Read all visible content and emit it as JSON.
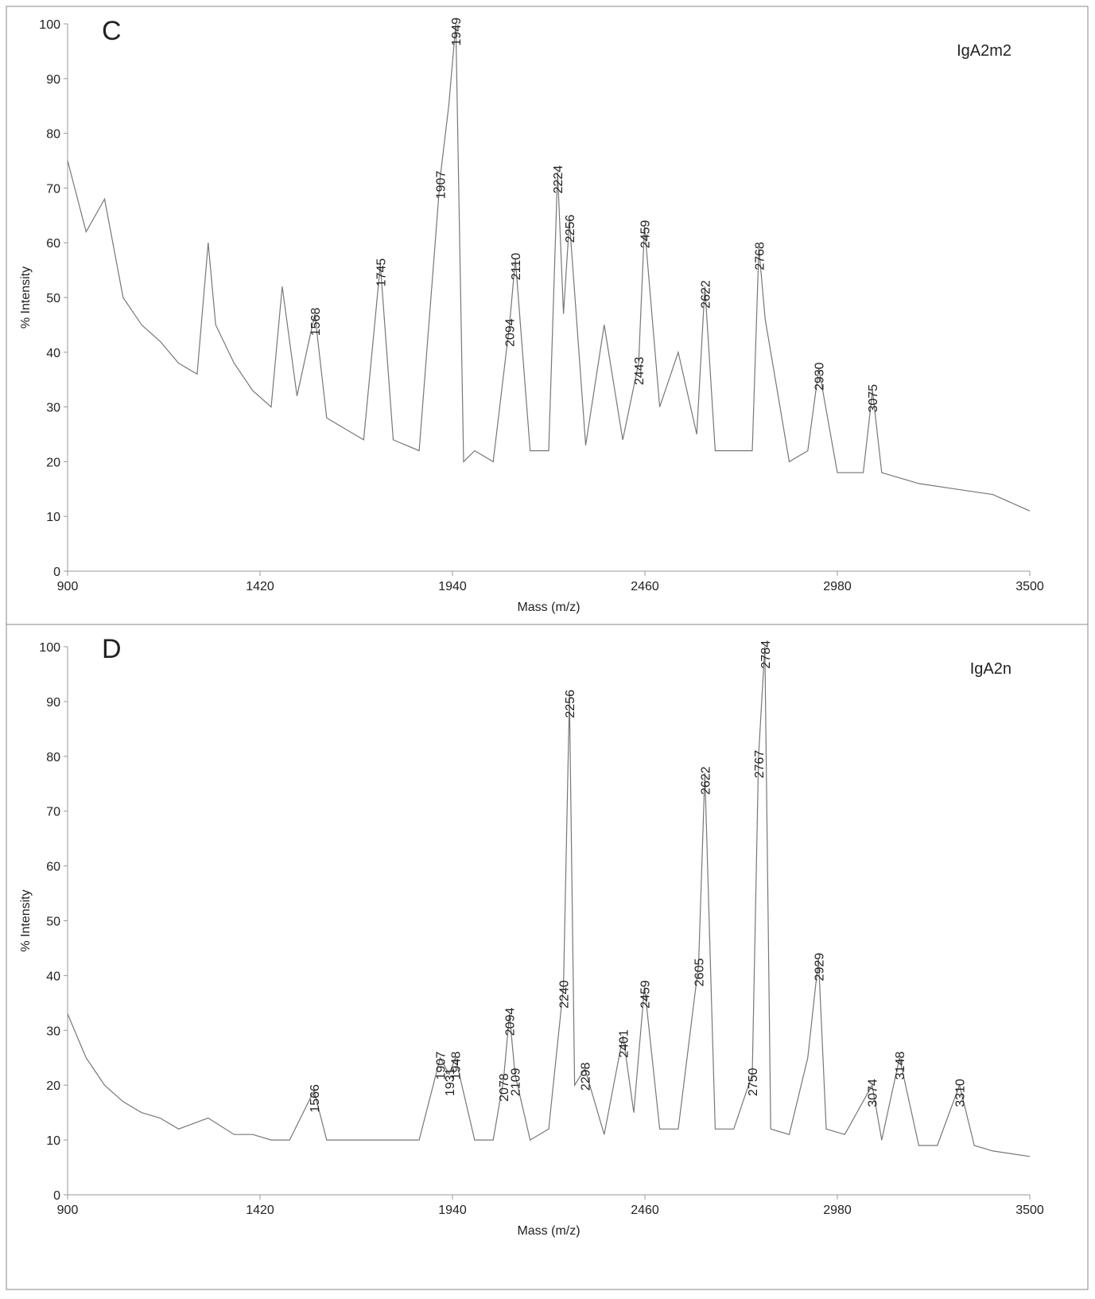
{
  "chart_data": [
    {
      "type": "line",
      "title": "C",
      "annotation": "IgA2m2",
      "xlabel": "Mass (m/z)",
      "ylabel": "% Intensity",
      "color": "#777777",
      "xlim": [
        900,
        3500
      ],
      "xticks": [
        900,
        1420,
        1940,
        2460,
        2980,
        3500
      ],
      "ylim": [
        0,
        100
      ],
      "yticks": [
        0,
        10,
        20,
        30,
        40,
        50,
        60,
        70,
        80,
        90,
        100
      ],
      "x": [
        900,
        950,
        1000,
        1050,
        1100,
        1150,
        1200,
        1250,
        1280,
        1300,
        1350,
        1400,
        1450,
        1480,
        1520,
        1568,
        1600,
        1650,
        1700,
        1745,
        1780,
        1850,
        1907,
        1930,
        1949,
        1970,
        2000,
        2050,
        2094,
        2110,
        2150,
        2200,
        2224,
        2240,
        2256,
        2300,
        2350,
        2400,
        2443,
        2459,
        2500,
        2550,
        2600,
        2622,
        2650,
        2700,
        2750,
        2768,
        2785,
        2850,
        2900,
        2930,
        2980,
        3050,
        3075,
        3100,
        3200,
        3300,
        3400,
        3500
      ],
      "values": [
        75,
        62,
        68,
        50,
        45,
        42,
        38,
        36,
        60,
        45,
        38,
        33,
        30,
        52,
        32,
        47,
        28,
        26,
        24,
        56,
        24,
        22,
        72,
        85,
        100,
        20,
        22,
        20,
        45,
        57,
        22,
        22,
        73,
        47,
        64,
        23,
        45,
        24,
        38,
        63,
        30,
        40,
        25,
        52,
        22,
        22,
        22,
        59,
        46,
        20,
        22,
        37,
        18,
        18,
        33,
        18,
        16,
        15,
        14,
        11
      ],
      "peak_labels": [
        1568,
        1745,
        1907,
        1949,
        2094,
        2110,
        2224,
        2256,
        2443,
        2459,
        2622,
        2768,
        2930,
        3075
      ]
    },
    {
      "type": "line",
      "title": "D",
      "annotation": "IgA2n",
      "xlabel": "Mass (m/z)",
      "ylabel": "% Intensity",
      "color": "#777777",
      "xlim": [
        900,
        3500
      ],
      "xticks": [
        900,
        1420,
        1940,
        2460,
        2980,
        3500
      ],
      "ylim": [
        0,
        100
      ],
      "yticks": [
        0,
        10,
        20,
        30,
        40,
        50,
        60,
        70,
        80,
        90,
        100
      ],
      "x": [
        900,
        950,
        1000,
        1050,
        1100,
        1150,
        1200,
        1280,
        1350,
        1400,
        1450,
        1500,
        1566,
        1600,
        1700,
        1800,
        1850,
        1907,
        1931,
        1948,
        2000,
        2050,
        2078,
        2094,
        2109,
        2150,
        2200,
        2240,
        2256,
        2270,
        2298,
        2350,
        2401,
        2430,
        2459,
        2500,
        2550,
        2605,
        2622,
        2650,
        2700,
        2750,
        2767,
        2784,
        2800,
        2850,
        2900,
        2929,
        2950,
        3000,
        3074,
        3100,
        3148,
        3200,
        3250,
        3310,
        3350,
        3400,
        3500
      ],
      "values": [
        33,
        25,
        20,
        17,
        15,
        14,
        12,
        14,
        11,
        11,
        10,
        10,
        19,
        10,
        10,
        10,
        10,
        25,
        22,
        25,
        10,
        10,
        21,
        33,
        22,
        10,
        12,
        38,
        91,
        20,
        23,
        11,
        29,
        15,
        38,
        12,
        12,
        42,
        77,
        12,
        12,
        22,
        80,
        100,
        12,
        11,
        25,
        43,
        12,
        11,
        20,
        10,
        25,
        9,
        9,
        20,
        9,
        8,
        7
      ],
      "peak_labels": [
        1566,
        1907,
        1931,
        1948,
        2078,
        2094,
        2109,
        2240,
        2256,
        2298,
        2401,
        2459,
        2605,
        2622,
        2750,
        2767,
        2784,
        2929,
        3074,
        3148,
        3310
      ]
    }
  ]
}
